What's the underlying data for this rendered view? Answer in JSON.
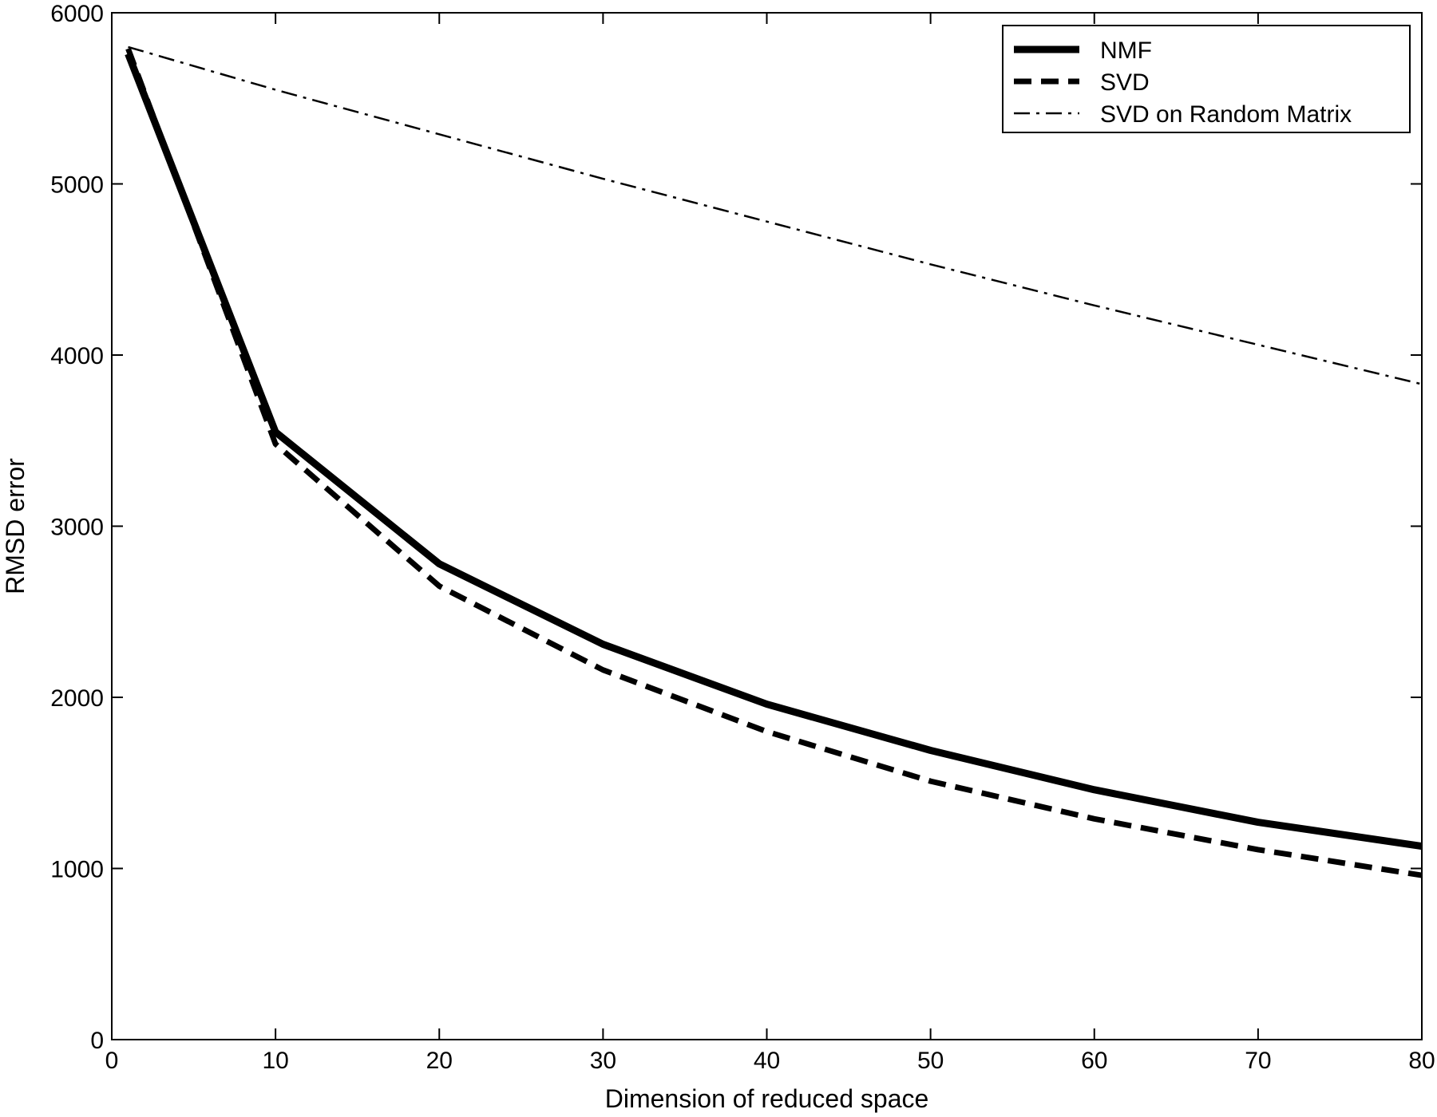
{
  "chart_data": {
    "type": "line",
    "title": "",
    "xlabel": "Dimension of reduced space",
    "ylabel": "RMSD error",
    "xlim": [
      0,
      80
    ],
    "ylim": [
      0,
      6000
    ],
    "xticks": [
      0,
      10,
      20,
      30,
      40,
      50,
      60,
      70,
      80
    ],
    "yticks": [
      0,
      1000,
      2000,
      3000,
      4000,
      5000,
      6000
    ],
    "grid": false,
    "legend_position": "top-right",
    "series": [
      {
        "name": "NMF",
        "style": "solid-thick",
        "color": "#000000",
        "x": [
          1,
          10,
          20,
          30,
          40,
          50,
          60,
          70,
          80
        ],
        "y": [
          5760,
          3550,
          2780,
          2310,
          1960,
          1690,
          1460,
          1270,
          1130
        ]
      },
      {
        "name": "SVD",
        "style": "dashed-thick",
        "color": "#000000",
        "x": [
          1,
          10,
          20,
          30,
          40,
          50,
          60,
          70,
          80
        ],
        "y": [
          5790,
          3480,
          2650,
          2160,
          1800,
          1510,
          1290,
          1110,
          960
        ]
      },
      {
        "name": "SVD on Random Matrix",
        "style": "dashdot-thin",
        "color": "#000000",
        "x": [
          1,
          10,
          20,
          30,
          40,
          50,
          60,
          70,
          80
        ],
        "y": [
          5800,
          5550,
          5290,
          5030,
          4780,
          4530,
          4290,
          4060,
          3830
        ]
      }
    ]
  }
}
